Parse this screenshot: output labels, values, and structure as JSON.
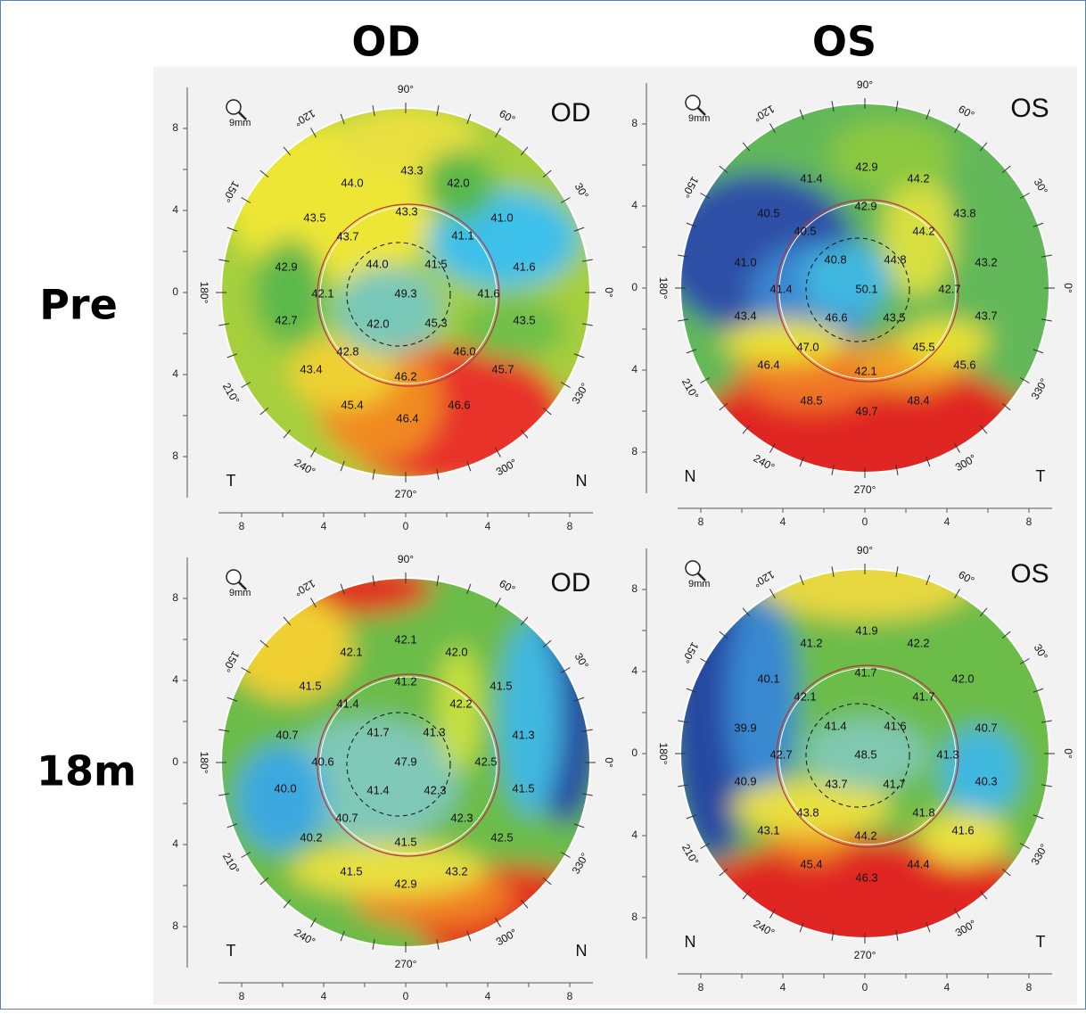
{
  "header": {
    "columns": [
      "OD",
      "OS"
    ]
  },
  "rows": [
    "Pre",
    "18m"
  ],
  "scale": {
    "zoom": "9mm",
    "axis_ticks": [
      "8",
      "4",
      "0",
      "4",
      "8"
    ],
    "angles": [
      "90°",
      "60°",
      "30°",
      "0°",
      "330°",
      "300°",
      "270°",
      "240°",
      "210°",
      "180°",
      "150°",
      "120°"
    ]
  },
  "panels": [
    {
      "eye": "OD",
      "left": "T",
      "right": "N",
      "readings": [
        "44.0",
        "43.3",
        "42.0",
        "41.0",
        "43.5",
        "43.3",
        "41.1",
        "43.7",
        "44.0",
        "41.5",
        "41.6",
        "42.9",
        "42.1",
        "49.3",
        "41.6",
        "42.7",
        "42.0",
        "45.3",
        "43.5",
        "42.8",
        "46.0",
        "43.4",
        "46.2",
        "45.7",
        "45.4",
        "46.4",
        "46.6"
      ]
    },
    {
      "eye": "OS",
      "left": "N",
      "right": "T",
      "readings": [
        "42.9",
        "41.4",
        "44.2",
        "40.5",
        "42.9",
        "43.8",
        "40.5",
        "44.2",
        "40.8",
        "44.8",
        "41.0",
        "43.2",
        "41.4",
        "50.1",
        "42.7",
        "43.4",
        "46.6",
        "43.5",
        "43.7",
        "47.0",
        "45.5",
        "46.4",
        "42.1",
        "45.6",
        "48.5",
        "49.7",
        "48.4"
      ]
    },
    {
      "eye": "OD",
      "left": "T",
      "right": "N",
      "readings": [
        "42.1",
        "42.1",
        "42.0",
        "41.5",
        "41.2",
        "41.5",
        "41.4",
        "42.2",
        "41.7",
        "41.3",
        "41.3",
        "40.7",
        "40.6",
        "47.9",
        "42.5",
        "40.0",
        "41.4",
        "42.3",
        "41.5",
        "40.7",
        "42.3",
        "40.2",
        "41.5",
        "42.5",
        "41.5",
        "42.9",
        "43.2"
      ]
    },
    {
      "eye": "OS",
      "left": "N",
      "right": "T",
      "readings": [
        "41.9",
        "41.2",
        "42.2",
        "41.7",
        "40.1",
        "42.0",
        "42.1",
        "41.7",
        "41.4",
        "41.6",
        "39.9",
        "40.7",
        "42.7",
        "48.5",
        "41.3",
        "40.9",
        "43.7",
        "41.7",
        "40.3",
        "43.8",
        "41.8",
        "43.1",
        "44.2",
        "41.6",
        "45.4",
        "46.3",
        "44.4"
      ]
    }
  ]
}
